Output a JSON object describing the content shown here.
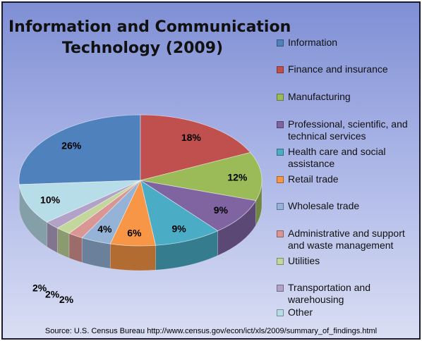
{
  "chart_data": {
    "type": "pie",
    "title_lines": [
      "Information and Communication",
      "Technology (2009)"
    ],
    "categories": [
      "Information",
      "Finance and insurance",
      "Manufacturing",
      "Professional, scientific, and technical services",
      "Health care and social assistance",
      "Retail trade",
      "Wholesale trade",
      "Administrative and support and waste management",
      "Utilities",
      "Transportation and warehousing",
      "Other"
    ],
    "values": [
      26,
      18,
      12,
      9,
      9,
      6,
      4,
      2,
      2,
      2,
      10
    ],
    "data_labels": [
      "26%",
      "18%",
      "12%",
      "9%",
      "9%",
      "6%",
      "4%",
      "2%",
      "2%",
      "2%",
      "10%"
    ],
    "colors": [
      "#4f81bd",
      "#c0504d",
      "#9bbb59",
      "#8064a2",
      "#4bacc6",
      "#f79646",
      "#95b3d7",
      "#d99694",
      "#c3d69b",
      "#b3a2c7",
      "#b7dde8"
    ],
    "legend_position": "right",
    "source": "Source:  U.S. Census Bureau http://www.census.gov/econ/ict/xls/2009/summary_of_findings.html"
  }
}
